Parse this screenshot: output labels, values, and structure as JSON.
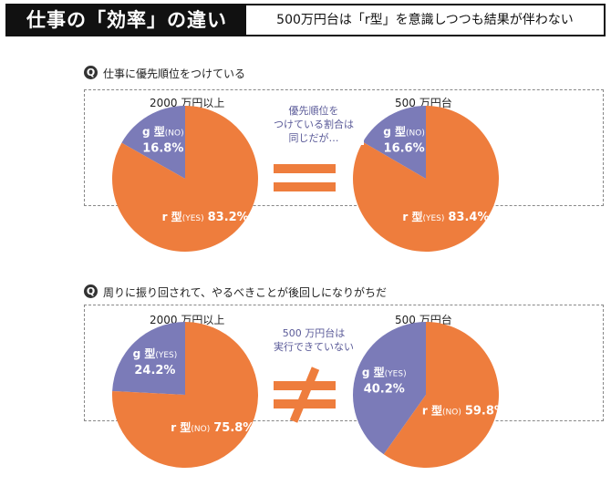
{
  "header": {
    "title": "仕事の「効率」の違い",
    "subtitle": "500万円台は「r型」を意識しつつも結果が伴わない"
  },
  "colors": {
    "r_type": "#ee7d3d",
    "g_type": "#7b7bb8",
    "note": "#5a5a98"
  },
  "sections": [
    {
      "q_mark": "Q",
      "question": "仕事に優先順位をつけている",
      "left_label": "2000 万円以上",
      "right_label": "500 万円台",
      "note_lines": [
        "優先順位を",
        "つけている割合は",
        "同じだが…"
      ],
      "symbol": "equal"
    },
    {
      "q_mark": "Q",
      "question": "周りに振り回されて、やるべきことが後回しになりがちだ",
      "left_label": "2000 万円以上",
      "right_label": "500 万円台",
      "note_lines": [
        "500 万円台は",
        "実行できていない"
      ],
      "symbol": "not-equal"
    }
  ],
  "chart_data": [
    {
      "type": "pie",
      "group": "2000 万円以上",
      "question": "仕事に優先順位をつけている",
      "slices": [
        {
          "type_label": "g 型",
          "answer": "(NO)",
          "value": 16.8,
          "label": "16.8%"
        },
        {
          "type_label": "r 型",
          "answer": "(YES)",
          "value": 83.2,
          "label": "83.2%"
        }
      ]
    },
    {
      "type": "pie",
      "group": "500 万円台",
      "question": "仕事に優先順位をつけている",
      "slices": [
        {
          "type_label": "g 型",
          "answer": "(NO)",
          "value": 16.6,
          "label": "16.6%"
        },
        {
          "type_label": "r 型",
          "answer": "(YES)",
          "value": 83.4,
          "label": "83.4%"
        }
      ]
    },
    {
      "type": "pie",
      "group": "2000 万円以上",
      "question": "周りに振り回されて、やるべきことが後回しになりがちだ",
      "slices": [
        {
          "type_label": "g 型",
          "answer": "(YES)",
          "value": 24.2,
          "label": "24.2%"
        },
        {
          "type_label": "r 型",
          "answer": "(NO)",
          "value": 75.8,
          "label": "75.8%"
        }
      ]
    },
    {
      "type": "pie",
      "group": "500 万円台",
      "question": "周りに振り回されて、やるべきことが後回しになりがちだ",
      "slices": [
        {
          "type_label": "g 型",
          "answer": "(YES)",
          "value": 40.2,
          "label": "40.2%"
        },
        {
          "type_label": "r 型",
          "answer": "(NO)",
          "value": 59.8,
          "label": "59.8%"
        }
      ]
    }
  ]
}
